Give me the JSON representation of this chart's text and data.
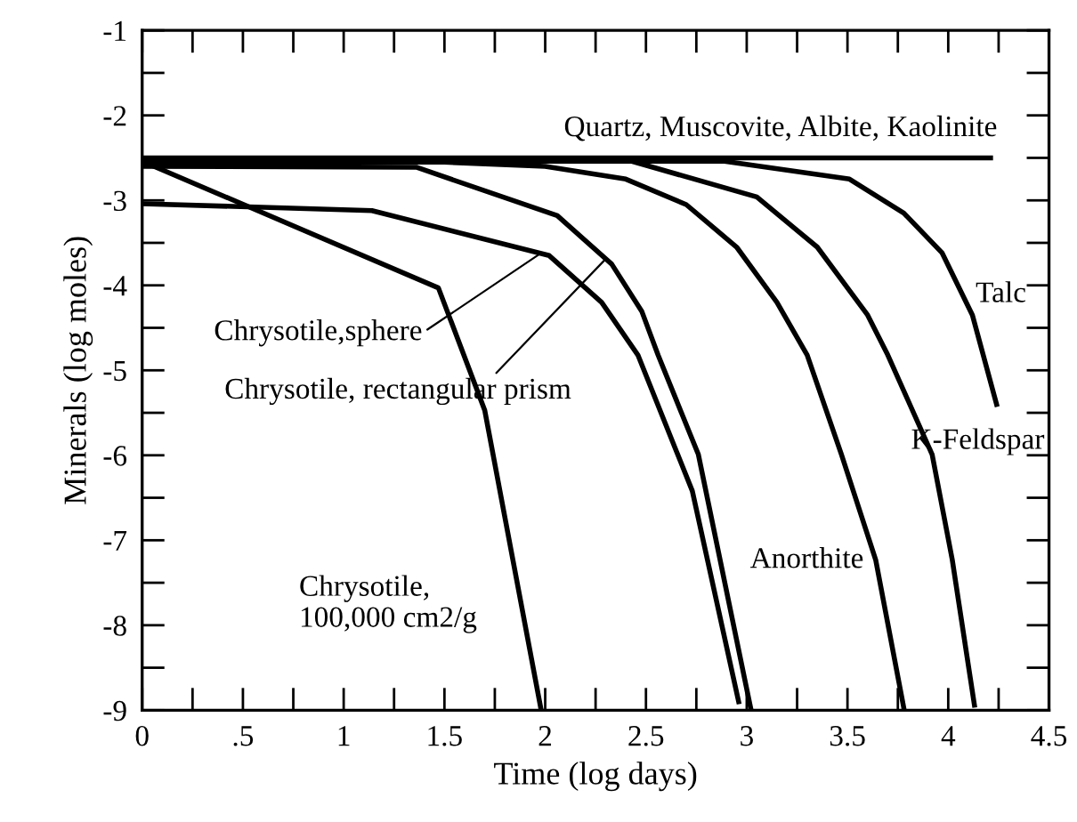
{
  "chart_data": {
    "type": "line",
    "xlabel": "Time (log days)",
    "ylabel": "Minerals (log moles)",
    "xlim": [
      0,
      4.5
    ],
    "ylim": [
      -9,
      -1
    ],
    "xticks": [
      0,
      {
        "value": 0.25,
        "label": null
      },
      {
        "value": 0.5,
        "label": ".5"
      },
      {
        "value": 0.75,
        "label": null
      },
      1,
      {
        "value": 1.25,
        "label": null
      },
      1.5,
      {
        "value": 1.75,
        "label": null
      },
      2,
      {
        "value": 2.25,
        "label": null
      },
      2.5,
      {
        "value": 2.75,
        "label": null
      },
      3,
      {
        "value": 3.25,
        "label": null
      },
      3.5,
      {
        "value": 3.75,
        "label": null
      },
      4,
      {
        "value": 4.25,
        "label": null
      },
      4.5
    ],
    "yticks": [
      -9,
      {
        "value": -8.5,
        "label": null
      },
      -8,
      {
        "value": -7.5,
        "label": null
      },
      -7,
      {
        "value": -6.5,
        "label": null
      },
      -6,
      {
        "value": -5.5,
        "label": null
      },
      -5,
      {
        "value": -4.5,
        "label": null
      },
      -4,
      {
        "value": -3.5,
        "label": null
      },
      -3,
      {
        "value": -2.5,
        "label": null
      },
      -2,
      {
        "value": -1.5,
        "label": null
      },
      -1
    ],
    "grid": false,
    "legend": false,
    "marker": "none",
    "line_style": "solid",
    "series": [
      {
        "color": "#000000",
        "x": [
          0,
          4.21
        ],
        "values": [
          -2.5,
          -2.5
        ]
      },
      {
        "color": "#000000",
        "x": [
          0,
          1.47,
          1.7,
          1.98
        ],
        "values": [
          -2.54,
          -4.03,
          -5.47,
          -9.0
        ]
      },
      {
        "color": "#000000",
        "x": [
          0,
          1.14,
          2.02,
          2.28,
          2.46,
          2.73,
          2.96
        ],
        "values": [
          -3.04,
          -3.12,
          -3.65,
          -4.2,
          -4.82,
          -6.42,
          -8.9
        ]
      },
      {
        "color": "#000000",
        "x": [
          0,
          1.36,
          2.06,
          2.33,
          2.48,
          2.56,
          2.76,
          3.02
        ],
        "values": [
          -2.6,
          -2.61,
          -3.18,
          -3.75,
          -4.31,
          -4.82,
          -5.99,
          -8.98
        ]
      },
      {
        "color": "#000000",
        "x": [
          0,
          1.5,
          2.0,
          2.4,
          2.7,
          2.95,
          3.15,
          3.3,
          3.47,
          3.64,
          3.78
        ],
        "values": [
          -2.55,
          -2.55,
          -2.6,
          -2.75,
          -3.05,
          -3.55,
          -4.2,
          -4.82,
          -5.99,
          -7.23,
          -8.98
        ]
      },
      {
        "color": "#000000",
        "x": [
          0,
          2.43,
          3.05,
          3.35,
          3.6,
          3.7,
          3.92,
          4.02,
          4.13
        ],
        "values": [
          -2.54,
          -2.54,
          -2.96,
          -3.55,
          -4.35,
          -4.82,
          -5.99,
          -7.23,
          -8.94
        ]
      },
      {
        "color": "#000000",
        "x": [
          0,
          2.89,
          3.51,
          3.78,
          3.97,
          4.12,
          4.24
        ],
        "values": [
          -2.54,
          -2.54,
          -2.75,
          -3.15,
          -3.62,
          -4.35,
          -5.4
        ]
      }
    ],
    "annotations": [
      "Quartz, Muscovite, Albite, Kaolinite",
      "Chrysotile,\n100,000 cm2/g",
      {
        "text": "Chrysotile,sphere",
        "x": 1.98,
        "y": -3.62
      },
      {
        "text": "Chrysotile, rectangular prism",
        "x": 2.3,
        "y": -3.69
      },
      "Anorthite",
      "K-Feldspar",
      "Talc"
    ]
  }
}
